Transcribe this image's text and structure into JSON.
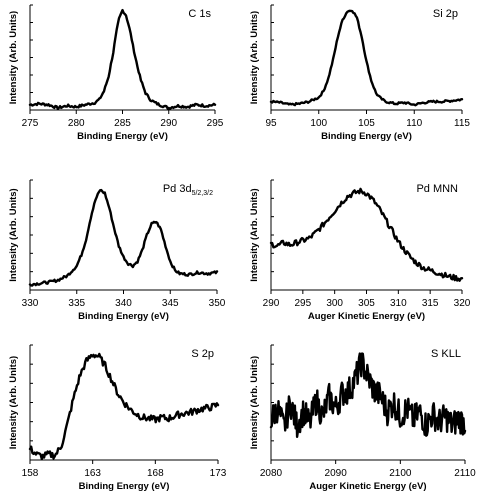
{
  "chart_data": [
    {
      "type": "line",
      "title": "C 1s",
      "xlabel": "Binding Energy (eV)",
      "ylabel": "Intensity (Arb. Units)",
      "xlim": [
        275,
        295
      ],
      "xticks": [
        275,
        280,
        285,
        290,
        295
      ],
      "ylim": [
        0,
        1
      ],
      "series": [
        {
          "x": [
            275,
            276,
            277,
            278,
            279,
            280,
            281,
            282,
            282.5,
            283,
            283.5,
            284,
            284.3,
            284.6,
            285,
            285.4,
            285.8,
            286.2,
            286.6,
            287,
            287.5,
            288,
            288.5,
            289,
            290,
            291,
            292,
            293,
            294,
            295
          ],
          "y": [
            0.05,
            0.06,
            0.05,
            0.02,
            0.04,
            0.03,
            0.05,
            0.07,
            0.1,
            0.18,
            0.32,
            0.55,
            0.72,
            0.86,
            0.95,
            0.9,
            0.76,
            0.58,
            0.42,
            0.28,
            0.16,
            0.1,
            0.07,
            0.05,
            0.02,
            0.04,
            0.03,
            0.05,
            0.04,
            0.05
          ]
        }
      ]
    },
    {
      "type": "line",
      "title": "Si 2p",
      "xlabel": "Binding Energy (eV)",
      "ylabel": "Intensity (Arb. Units)",
      "xlim": [
        95,
        115
      ],
      "xticks": [
        95,
        100,
        105,
        110,
        115
      ],
      "ylim": [
        0,
        1
      ],
      "series": [
        {
          "x": [
            95,
            96,
            97,
            98,
            99,
            100,
            100.5,
            101,
            101.5,
            102,
            102.5,
            103,
            103.5,
            104,
            104.5,
            105,
            105.5,
            106,
            106.5,
            107,
            108,
            109,
            110,
            111,
            112,
            113,
            114,
            115
          ],
          "y": [
            0.08,
            0.07,
            0.05,
            0.06,
            0.08,
            0.12,
            0.18,
            0.3,
            0.48,
            0.7,
            0.86,
            0.94,
            0.95,
            0.88,
            0.7,
            0.46,
            0.28,
            0.16,
            0.11,
            0.08,
            0.06,
            0.07,
            0.05,
            0.07,
            0.08,
            0.08,
            0.09,
            0.1
          ]
        }
      ]
    },
    {
      "type": "line",
      "title": "Pd 3d",
      "title_sub": "5/2,3/2",
      "xlabel": "Binding Energy (eV)",
      "ylabel": "Intensity (Arb. Units)",
      "xlim": [
        330,
        350
      ],
      "xticks": [
        330,
        335,
        340,
        345,
        350
      ],
      "ylim": [
        0,
        1
      ],
      "series": [
        {
          "x": [
            330,
            331,
            332,
            333,
            334,
            335,
            335.5,
            336,
            336.5,
            337,
            337.5,
            338,
            338.5,
            339,
            339.5,
            340,
            340.5,
            341,
            341.5,
            342,
            342.5,
            343,
            343.5,
            344,
            344.5,
            345,
            345.5,
            346,
            347,
            348,
            349,
            350
          ],
          "y": [
            0.05,
            0.06,
            0.07,
            0.09,
            0.13,
            0.22,
            0.32,
            0.46,
            0.66,
            0.82,
            0.91,
            0.88,
            0.74,
            0.56,
            0.4,
            0.3,
            0.24,
            0.22,
            0.26,
            0.36,
            0.5,
            0.6,
            0.62,
            0.55,
            0.4,
            0.26,
            0.18,
            0.15,
            0.14,
            0.16,
            0.15,
            0.16
          ]
        }
      ]
    },
    {
      "type": "line",
      "title": "Pd MNN",
      "xlabel": "Auger Kinetic Energy (eV)",
      "ylabel": "Intensity (Arb. Units)",
      "xlim": [
        290,
        320
      ],
      "xticks": [
        290,
        295,
        300,
        305,
        310,
        315,
        320
      ],
      "ylim": [
        0,
        1
      ],
      "series": [
        {
          "x": [
            290,
            291,
            292,
            293,
            294,
            295,
            296,
            297,
            298,
            299,
            300,
            301,
            302,
            303,
            304,
            305,
            306,
            307,
            308,
            309,
            310,
            311,
            312,
            313,
            314,
            315,
            316,
            317,
            318,
            319,
            320
          ],
          "y": [
            0.42,
            0.4,
            0.43,
            0.41,
            0.43,
            0.45,
            0.47,
            0.52,
            0.58,
            0.65,
            0.72,
            0.79,
            0.85,
            0.88,
            0.9,
            0.88,
            0.82,
            0.74,
            0.64,
            0.54,
            0.44,
            0.36,
            0.29,
            0.24,
            0.2,
            0.18,
            0.16,
            0.14,
            0.12,
            0.11,
            0.1
          ]
        }
      ]
    },
    {
      "type": "line",
      "title": "S 2p",
      "xlabel": "Binding Energy (eV)",
      "ylabel": "Intensity (Arb. Units)",
      "xlim": [
        158,
        173
      ],
      "xticks": [
        158,
        163,
        168,
        173
      ],
      "ylim": [
        0,
        1
      ],
      "series": [
        {
          "x": [
            158,
            158.5,
            159,
            159.5,
            160,
            160.5,
            161,
            161.5,
            162,
            162.5,
            163,
            163.5,
            164,
            164.5,
            165,
            165.5,
            166,
            166.5,
            167,
            167.5,
            168,
            168.5,
            169,
            169.5,
            170,
            170.5,
            171,
            171.5,
            172,
            172.5,
            173
          ],
          "y": [
            0.1,
            0.05,
            0.03,
            0.05,
            0.04,
            0.12,
            0.32,
            0.55,
            0.74,
            0.86,
            0.92,
            0.9,
            0.82,
            0.7,
            0.58,
            0.5,
            0.44,
            0.4,
            0.37,
            0.36,
            0.35,
            0.37,
            0.36,
            0.38,
            0.4,
            0.41,
            0.42,
            0.44,
            0.45,
            0.46,
            0.48
          ]
        }
      ]
    },
    {
      "type": "line",
      "title": "S KLL",
      "xlabel": "Auger Kinetic Energy (eV)",
      "ylabel": "Intensity (Arb. Units)",
      "xlim": [
        2080,
        2110
      ],
      "xticks": [
        2080,
        2090,
        2100,
        2110
      ],
      "ylim": [
        0,
        1
      ],
      "series": [
        {
          "x": [
            2080,
            2081,
            2082,
            2083,
            2084,
            2085,
            2086,
            2087,
            2088,
            2089,
            2090,
            2091,
            2092,
            2093,
            2094,
            2095,
            2096,
            2097,
            2098,
            2099,
            2100,
            2101,
            2102,
            2103,
            2104,
            2105,
            2106,
            2107,
            2108,
            2109,
            2110
          ],
          "y": [
            0.35,
            0.45,
            0.28,
            0.5,
            0.3,
            0.42,
            0.32,
            0.52,
            0.38,
            0.55,
            0.45,
            0.58,
            0.6,
            0.7,
            0.85,
            0.72,
            0.6,
            0.55,
            0.42,
            0.5,
            0.38,
            0.45,
            0.35,
            0.42,
            0.3,
            0.4,
            0.33,
            0.38,
            0.3,
            0.36,
            0.32
          ]
        }
      ]
    }
  ]
}
